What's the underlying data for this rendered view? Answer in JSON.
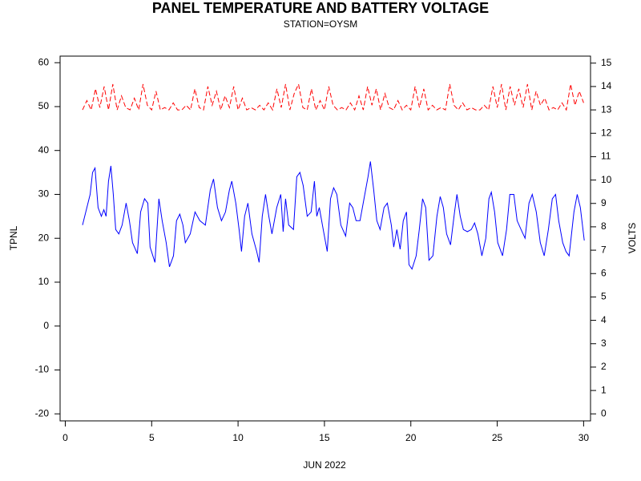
{
  "chart_data": {
    "type": "line",
    "title": "PANEL TEMPERATURE AND BATTERY VOLTAGE",
    "subtitle": "STATION=OYSM",
    "xlabel": "JUN 2022",
    "ylabel": "TPNL",
    "y2label": "VOLTS",
    "xlim": [
      -0.3,
      30.4
    ],
    "xticks": [
      0,
      5,
      10,
      15,
      20,
      25,
      30
    ],
    "ylim": [
      -21.6,
      61.5
    ],
    "yticks": [
      -20,
      -10,
      0,
      10,
      20,
      30,
      40,
      50,
      60
    ],
    "y2lim": [
      -0.3,
      15.3
    ],
    "y2ticks": [
      0,
      1,
      2,
      3,
      4,
      5,
      6,
      7,
      8,
      9,
      10,
      11,
      12,
      13,
      14,
      15
    ],
    "series": [
      {
        "color": "#0000ff",
        "axis": "y",
        "x": [
          1.0,
          1.44,
          1.58,
          1.72,
          1.9,
          2.09,
          2.23,
          2.36,
          2.5,
          2.64,
          2.78,
          2.92,
          3.1,
          3.29,
          3.52,
          3.71,
          3.89,
          4.17,
          4.36,
          4.59,
          4.78,
          4.91,
          5.19,
          5.42,
          5.61,
          5.84,
          6.03,
          6.26,
          6.44,
          6.63,
          6.81,
          6.95,
          7.23,
          7.51,
          7.79,
          8.11,
          8.39,
          8.58,
          8.81,
          9.04,
          9.27,
          9.5,
          9.64,
          9.87,
          10.06,
          10.2,
          10.38,
          10.57,
          10.8,
          11.08,
          11.22,
          11.4,
          11.59,
          11.78,
          11.96,
          12.24,
          12.47,
          12.61,
          12.75,
          12.93,
          13.21,
          13.4,
          13.58,
          13.77,
          14.0,
          14.23,
          14.42,
          14.56,
          14.7,
          14.93,
          15.16,
          15.35,
          15.53,
          15.72,
          15.95,
          16.23,
          16.46,
          16.64,
          16.83,
          17.06,
          17.29,
          17.52,
          17.66,
          17.85,
          18.03,
          18.22,
          18.45,
          18.64,
          18.87,
          19.01,
          19.19,
          19.38,
          19.56,
          19.75,
          19.89,
          20.07,
          20.31,
          20.49,
          20.68,
          20.86,
          21.05,
          21.28,
          21.51,
          21.7,
          21.88,
          22.07,
          22.3,
          22.53,
          22.67,
          22.86,
          23.04,
          23.27,
          23.5,
          23.69,
          23.88,
          24.11,
          24.34,
          24.52,
          24.66,
          24.85,
          25.03,
          25.31,
          25.54,
          25.73,
          25.96,
          26.15,
          26.38,
          26.61,
          26.84,
          27.03,
          27.26,
          27.49,
          27.72,
          27.96,
          28.19,
          28.38,
          28.56,
          28.79,
          28.98,
          29.16,
          29.44,
          29.63,
          29.81,
          30.04
        ],
        "values": [
          23,
          30,
          35,
          36,
          27,
          25,
          26.5,
          25,
          33,
          36.5,
          30,
          22,
          21,
          23,
          28,
          24,
          19,
          16.5,
          26,
          29,
          28,
          18,
          14.5,
          29,
          24,
          19,
          13.5,
          16,
          24,
          25.5,
          23,
          19,
          21,
          26,
          24,
          23,
          31,
          33.5,
          27,
          24,
          26,
          31,
          33,
          28,
          22,
          17,
          25,
          28,
          21,
          17,
          14.5,
          25,
          30,
          25,
          21,
          27,
          30,
          21.5,
          29,
          23,
          22,
          34,
          35,
          32,
          25,
          26,
          33,
          25,
          27,
          22,
          17,
          29,
          31.5,
          30,
          23,
          20.5,
          28,
          27,
          24,
          24,
          29,
          34,
          37.5,
          31,
          24,
          22,
          27,
          28,
          23,
          18,
          22,
          17.5,
          24,
          26,
          14,
          13,
          16,
          22,
          29,
          27,
          15,
          16,
          25,
          29.5,
          27,
          21,
          18.5,
          26,
          30,
          25,
          22,
          21.5,
          22,
          23.5,
          21,
          16,
          20,
          29,
          30.5,
          26,
          19,
          16,
          22,
          30,
          30,
          24,
          22,
          20,
          28,
          30,
          26,
          19,
          16,
          22,
          29,
          30,
          24,
          19,
          17,
          16,
          26,
          30,
          27,
          19.5
        ]
      },
      {
        "color": "#ff0000",
        "axis": "y2",
        "x": [
          1,
          1.25,
          1.5,
          1.75,
          2,
          2.25,
          2.5,
          2.75,
          3,
          3.25,
          3.5,
          3.75,
          4,
          4.25,
          4.5,
          4.75,
          5,
          5.25,
          5.5,
          5.75,
          6,
          6.25,
          6.5,
          6.75,
          7,
          7.25,
          7.5,
          7.75,
          8,
          8.25,
          8.5,
          8.75,
          9,
          9.25,
          9.5,
          9.75,
          10,
          10.25,
          10.5,
          10.75,
          11,
          11.25,
          11.5,
          11.75,
          12,
          12.25,
          12.5,
          12.75,
          13,
          13.25,
          13.5,
          13.75,
          14,
          14.25,
          14.5,
          14.75,
          15,
          15.25,
          15.5,
          15.75,
          16,
          16.25,
          16.5,
          16.75,
          17,
          17.25,
          17.5,
          17.75,
          18,
          18.25,
          18.5,
          18.75,
          19,
          19.25,
          19.5,
          19.75,
          20,
          20.25,
          20.5,
          20.75,
          21,
          21.25,
          21.5,
          21.75,
          22,
          22.25,
          22.5,
          22.75,
          23,
          23.25,
          23.5,
          23.75,
          24,
          24.25,
          24.5,
          24.75,
          25,
          25.25,
          25.5,
          25.75,
          26,
          26.25,
          26.5,
          26.75,
          27,
          27.25,
          27.5,
          27.75,
          28,
          28.25,
          28.5,
          28.75,
          29,
          29.25,
          29.5,
          29.75,
          30
        ],
        "values": [
          13.0,
          13.4,
          13.0,
          13.9,
          13.1,
          14.0,
          13.0,
          14.1,
          13.0,
          13.6,
          13.1,
          13.0,
          13.5,
          13.0,
          14.1,
          13.2,
          13.0,
          13.8,
          13.0,
          13.1,
          13.0,
          13.3,
          13.0,
          13.0,
          13.2,
          13.0,
          13.9,
          13.1,
          13.0,
          14.0,
          13.2,
          13.8,
          13.0,
          13.6,
          13.1,
          14.0,
          13.0,
          13.5,
          13.0,
          13.1,
          13.0,
          13.2,
          13.0,
          13.3,
          13.0,
          13.9,
          13.1,
          14.1,
          13.0,
          13.7,
          14.1,
          13.1,
          13.0,
          13.9,
          13.0,
          13.4,
          13.0,
          14.0,
          13.2,
          13.0,
          13.1,
          13.0,
          13.3,
          13.0,
          13.6,
          13.0,
          14.0,
          13.2,
          13.9,
          13.0,
          13.7,
          13.1,
          13.0,
          13.4,
          13.0,
          13.2,
          13.0,
          14.0,
          13.1,
          13.9,
          13.0,
          13.2,
          13.0,
          13.1,
          13.0,
          14.1,
          13.2,
          13.0,
          13.3,
          13.0,
          13.1,
          13.0,
          13.0,
          13.2,
          13.0,
          14.0,
          13.1,
          14.1,
          13.0,
          14.0,
          13.2,
          13.9,
          13.1,
          14.1,
          13.0,
          13.8,
          13.2,
          13.5,
          13.0,
          13.1,
          13.0,
          13.3,
          13.0,
          14.1,
          13.2,
          13.8,
          13.3
        ]
      }
    ]
  }
}
